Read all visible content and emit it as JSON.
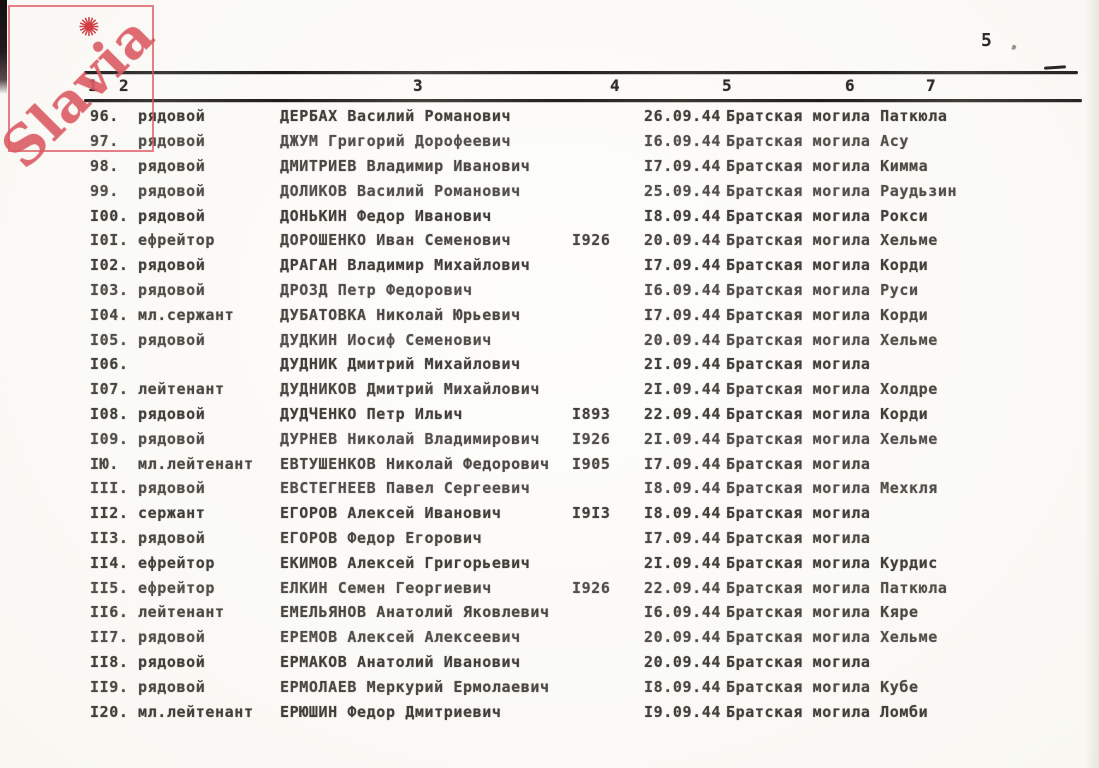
{
  "page": {
    "number": "5"
  },
  "watermark": {
    "text": "Slavia",
    "sun_icon": "✺"
  },
  "table": {
    "column_headers": [
      "1",
      "2",
      "3",
      "4",
      "5",
      "6",
      "7"
    ],
    "rows": [
      {
        "num": "96.",
        "rank": "рядовой",
        "name": "ДЕРБАХ Василий Романович",
        "year": "",
        "date": "26.09.44",
        "place": "Братская могила Паткюла"
      },
      {
        "num": "97.",
        "rank": "рядовой",
        "name": "ДЖУМ Григорий Дорофеевич",
        "year": "",
        "date": "I6.09.44",
        "place": "Братская могила Асу"
      },
      {
        "num": "98.",
        "rank": "рядовой",
        "name": "ДМИТРИЕВ Владимир Иванович",
        "year": "",
        "date": "I7.09.44",
        "place": "Братская могила Кимма"
      },
      {
        "num": "99.",
        "rank": "рядовой",
        "name": "ДОЛИКОВ Василий Романович",
        "year": "",
        "date": "25.09.44",
        "place": "Братская могила Раудьзин"
      },
      {
        "num": "I00.",
        "rank": "рядовой",
        "name": "ДОНЬКИН Федор Иванович",
        "year": "",
        "date": "I8.09.44",
        "place": "Братская могила Рокси"
      },
      {
        "num": "I0I.",
        "rank": "ефрейтор",
        "name": "ДОРОШЕНКО Иван Семенович",
        "year": "I926",
        "date": "20.09.44",
        "place": "Братская могила Хельме"
      },
      {
        "num": "I02.",
        "rank": "рядовой",
        "name": "ДРАГАН Владимир Михайлович",
        "year": "",
        "date": "I7.09.44",
        "place": "Братская могила Корди"
      },
      {
        "num": "I03.",
        "rank": "рядовой",
        "name": "ДРОЗД Петр Федорович",
        "year": "",
        "date": "I6.09.44",
        "place": "Братская могила Руси"
      },
      {
        "num": "I04.",
        "rank": "мл.сержант",
        "name": "ДУБАТОВКА Николай Юрьевич",
        "year": "",
        "date": "I7.09.44",
        "place": "Братская могила Корди"
      },
      {
        "num": "I05.",
        "rank": "рядовой",
        "name": "ДУДКИН Иосиф Семенович",
        "year": "",
        "date": "20.09.44",
        "place": "Братская могила Хельме"
      },
      {
        "num": "I06.",
        "rank": "",
        "name": "ДУДНИК Дмитрий Михайлович",
        "year": "",
        "date": "2I.09.44",
        "place": "Братская могила"
      },
      {
        "num": "I07.",
        "rank": "лейтенант",
        "name": "ДУДНИКОВ Дмитрий Михайлович",
        "year": "",
        "date": "2I.09.44",
        "place": "Братская могила Холдре"
      },
      {
        "num": "I08.",
        "rank": "рядовой",
        "name": "ДУДЧЕНКО Петр Ильич",
        "year": "I893",
        "date": "22.09.44",
        "place": "Братская могила Корди"
      },
      {
        "num": "I09.",
        "rank": "рядовой",
        "name": "ДУРНЕВ Николай Владимирович",
        "year": "I926",
        "date": "2I.09.44",
        "place": "Братская могила Хельме"
      },
      {
        "num": "IЮ.",
        "rank": "мл.лейтенант",
        "name": "ЕВТУШЕНКОВ Николай Федорович",
        "year": "I905",
        "date": "I7.09.44",
        "place": "Братская могила"
      },
      {
        "num": "III.",
        "rank": "рядовой",
        "name": "ЕВСТЕГНЕЕВ Павел Сергеевич",
        "year": "",
        "date": "I8.09.44",
        "place": "Братская могила Мехкля"
      },
      {
        "num": "II2.",
        "rank": "сержант",
        "name": "ЕГОРОВ Алексей Иванович",
        "year": "I9I3",
        "date": "I8.09.44",
        "place": "Братская могила"
      },
      {
        "num": "II3.",
        "rank": "рядовой",
        "name": "ЕГОРОВ Федор Егорович",
        "year": "",
        "date": "I7.09.44",
        "place": "Братская могила"
      },
      {
        "num": "II4.",
        "rank": "ефрейтор",
        "name": "ЕКИМОВ Алексей Григорьевич",
        "year": "",
        "date": "2I.09.44",
        "place": "Братская могила Курдис"
      },
      {
        "num": "II5.",
        "rank": "ефрейтор",
        "name": "ЕЛКИН Семен Георгиевич",
        "year": "I926",
        "date": "22.09.44",
        "place": "Братская могила Паткюла"
      },
      {
        "num": "II6.",
        "rank": "лейтенант",
        "name": "ЕМЕЛЬЯНОВ Анатолий Яковлевич",
        "year": "",
        "date": "I6.09.44",
        "place": "Братская могила Кяре"
      },
      {
        "num": "II7.",
        "rank": "рядовой",
        "name": "ЕРЕМОВ Алексей Алексеевич",
        "year": "",
        "date": "20.09.44",
        "place": "Братская могила Хельме"
      },
      {
        "num": "II8.",
        "rank": "рядовой",
        "name": "ЕРМАКОВ Анатолий Иванович",
        "year": "",
        "date": "20.09.44",
        "place": "Братская могила"
      },
      {
        "num": "II9.",
        "rank": "рядовой",
        "name": "ЕРМОЛАЕВ Меркурий Ермолаевич",
        "year": "",
        "date": "I8.09.44",
        "place": "Братская могила Кубе"
      },
      {
        "num": "I20.",
        "rank": "мл.лейтенант",
        "name": "ЕРЮШИН Федор Дмитриевич",
        "year": "",
        "date": "I9.09.44",
        "place": "Братская могила Ломби"
      }
    ]
  }
}
